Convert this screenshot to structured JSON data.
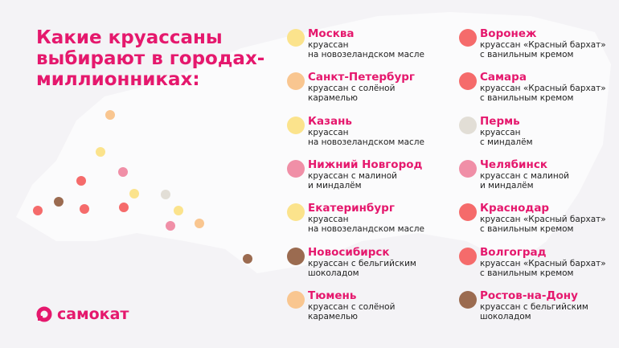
{
  "header": {
    "title": [
      "Какие круассаны",
      "выбирают в городах-",
      "миллионниках:"
    ]
  },
  "cities": [
    {
      "name": "Москва",
      "description": [
        "круассан",
        "на новозеландском масле"
      ],
      "color": "#fbe38c"
    },
    {
      "name": "Санкт-Петербург",
      "description": [
        "круассан с солёной",
        "карамелью"
      ],
      "color": "#f9c690"
    },
    {
      "name": "Казань",
      "description": [
        "круассан",
        "на новозеландском масле"
      ],
      "color": "#fbe38c"
    },
    {
      "name": "Нижний Новгород",
      "description": [
        "круассан с малиной",
        "и миндалём"
      ],
      "color": "#f08fa7"
    },
    {
      "name": "Екатеринбург",
      "description": [
        "круассан",
        "на новозеландском масле"
      ],
      "color": "#fbe38c"
    },
    {
      "name": "Новосибирск",
      "description": [
        "круассан с бельгийским",
        "шоколадом"
      ],
      "color": "#9b6b50"
    },
    {
      "name": "Тюмень",
      "description": [
        "круассан с солёной",
        "карамелью"
      ],
      "color": "#f9c690"
    },
    {
      "name": "Воронеж",
      "description": [
        "круассан «Красный бархат»",
        "с ванильным кремом"
      ],
      "color": "#f56b6b"
    },
    {
      "name": "Самара",
      "description": [
        "круассан «Красный бархат»",
        "с ванильным кремом"
      ],
      "color": "#f56b6b"
    },
    {
      "name": "Пермь",
      "description": [
        "круассан",
        "с миндалём"
      ],
      "color": "#e2ded6"
    },
    {
      "name": "Челябинск",
      "description": [
        "круассан с малиной",
        "и миндалём"
      ],
      "color": "#f08fa7"
    },
    {
      "name": "Краснодар",
      "description": [
        "круассан «Красный бархат»",
        "с ванильным кремом"
      ],
      "color": "#f56b6b"
    },
    {
      "name": "Волгоград",
      "description": [
        "круассан «Красный бархат»",
        "с ванильным кремом"
      ],
      "color": "#f56b6b"
    },
    {
      "name": "Ростов-на-Дону",
      "description": [
        "круассан с бельгийским",
        "шоколадом"
      ],
      "color": "#9b6b50"
    }
  ],
  "logo": "самокат"
}
